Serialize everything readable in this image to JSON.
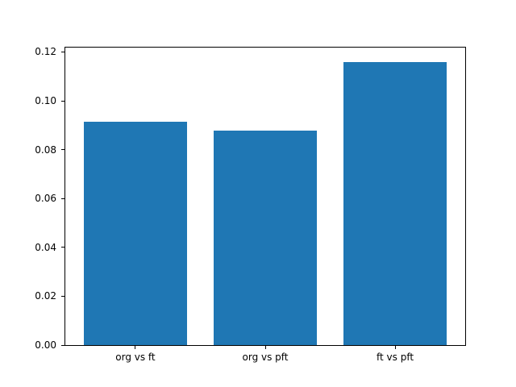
{
  "figure": {
    "background": "#ffffff"
  },
  "chart_data": {
    "type": "bar",
    "categories": [
      "org vs ft",
      "org vs pft",
      "ft vs pft"
    ],
    "values": [
      0.0915,
      0.0878,
      0.116
    ],
    "title": "",
    "xlabel": "",
    "ylabel": "",
    "ylim": [
      0,
      0.1218
    ],
    "yticks": [
      0.0,
      0.02,
      0.04,
      0.06,
      0.08,
      0.1,
      0.12
    ],
    "ytick_labels": [
      "0.00",
      "0.02",
      "0.04",
      "0.06",
      "0.08",
      "0.10",
      "0.12"
    ],
    "bar_color": "#1f77b4",
    "axis_color": "#000000",
    "grid": false,
    "legend": null
  }
}
